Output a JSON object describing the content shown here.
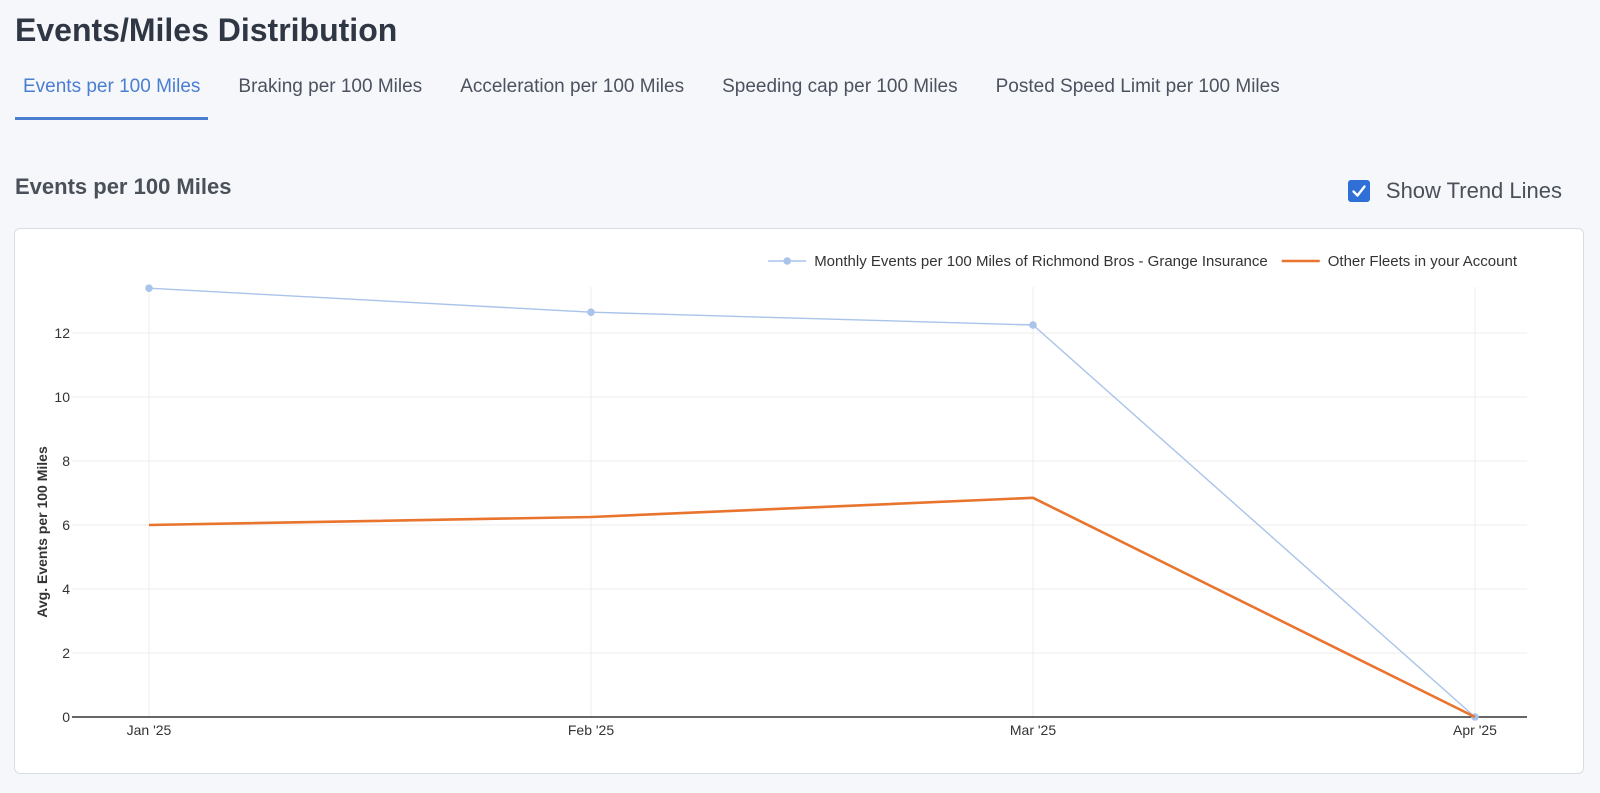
{
  "page": {
    "title": "Events/Miles Distribution"
  },
  "tabs": [
    {
      "label": "Events per 100 Miles",
      "active": true
    },
    {
      "label": "Braking per 100 Miles",
      "active": false
    },
    {
      "label": "Acceleration per 100 Miles",
      "active": false
    },
    {
      "label": "Speeding cap per 100 Miles",
      "active": false
    },
    {
      "label": "Posted Speed Limit per 100 Miles",
      "active": false
    }
  ],
  "section": {
    "title": "Events per 100 Miles",
    "trend_toggle": {
      "label": "Show Trend Lines",
      "checked": true,
      "icon": "checkmark-icon"
    }
  },
  "colors": {
    "accent": "#4a7ed0",
    "checkbox": "#2f6fd6",
    "series_fleet": "#a9c3ea",
    "series_other": "#e8742e"
  },
  "chart_data": {
    "type": "line",
    "categories": [
      "Jan '25",
      "Feb '25",
      "Mar '25",
      "Apr '25"
    ],
    "ylabel": "Avg. Events per 100 Miles",
    "xlabel": "",
    "ylim": [
      0,
      13.5
    ],
    "yticks": [
      0,
      2,
      4,
      6,
      8,
      10,
      12
    ],
    "grid": true,
    "legend_position": "top-right",
    "series": [
      {
        "name": "Monthly Events per 100 Miles of Richmond Bros - Grange Insurance",
        "values": [
          13.4,
          12.65,
          12.25,
          0
        ],
        "color": "#a9c3ea",
        "markers": true
      },
      {
        "name": "Other Fleets in your Account",
        "values": [
          6.0,
          6.25,
          6.85,
          0
        ],
        "color": "#e8742e",
        "markers": false
      }
    ]
  }
}
